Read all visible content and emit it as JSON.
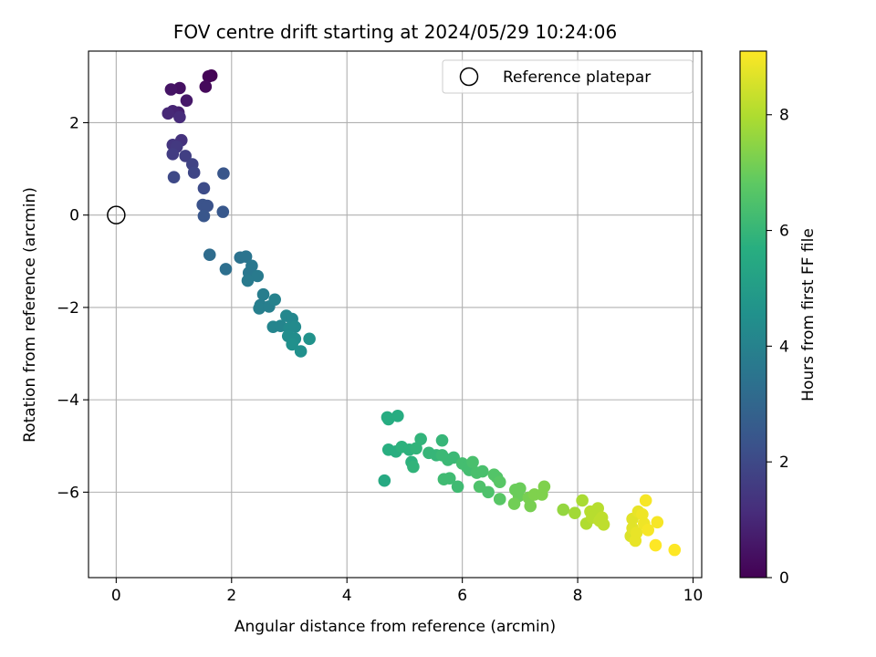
{
  "chart_data": {
    "type": "scatter",
    "title": "FOV centre drift starting at 2024/05/29 10:24:06",
    "xlabel": "Angular distance from reference (arcmin)",
    "ylabel": "Rotation from reference (arcmin)",
    "xlim": [
      -0.48,
      10.15
    ],
    "ylim": [
      -7.85,
      3.55
    ],
    "x_ticks": [
      0,
      2,
      4,
      6,
      8,
      10
    ],
    "y_ticks": [
      -6,
      -4,
      -2,
      0,
      2
    ],
    "x_tick_labels": [
      "0",
      "2",
      "4",
      "6",
      "8",
      "10"
    ],
    "y_tick_labels": [
      "−6",
      "−4",
      "−2",
      "0",
      "2"
    ],
    "grid": true,
    "legend": {
      "position": "top-right",
      "label": "Reference platepar"
    },
    "reference_point": {
      "x": 0,
      "y": 0
    },
    "colorbar": {
      "label": "Hours from first FF file",
      "colormap": "viridis",
      "range": [
        0,
        9.1
      ],
      "ticks": [
        0,
        2,
        4,
        6,
        8
      ],
      "tick_labels": [
        "0",
        "2",
        "4",
        "6",
        "8"
      ]
    },
    "points": [
      {
        "x": 1.65,
        "y": 3.02,
        "h": 0.0
      },
      {
        "x": 1.6,
        "y": 3.0,
        "h": 0.1
      },
      {
        "x": 1.55,
        "y": 2.78,
        "h": 0.2
      },
      {
        "x": 1.1,
        "y": 2.75,
        "h": 0.4
      },
      {
        "x": 0.95,
        "y": 2.72,
        "h": 0.5
      },
      {
        "x": 1.22,
        "y": 2.48,
        "h": 0.6
      },
      {
        "x": 1.08,
        "y": 2.22,
        "h": 0.8
      },
      {
        "x": 0.98,
        "y": 2.25,
        "h": 0.9
      },
      {
        "x": 0.9,
        "y": 2.2,
        "h": 1.0
      },
      {
        "x": 1.1,
        "y": 2.12,
        "h": 1.1
      },
      {
        "x": 1.13,
        "y": 1.62,
        "h": 1.3
      },
      {
        "x": 0.98,
        "y": 1.52,
        "h": 1.4
      },
      {
        "x": 1.05,
        "y": 1.48,
        "h": 1.5
      },
      {
        "x": 0.98,
        "y": 1.32,
        "h": 1.6
      },
      {
        "x": 1.2,
        "y": 1.28,
        "h": 1.7
      },
      {
        "x": 1.32,
        "y": 1.1,
        "h": 1.8
      },
      {
        "x": 1.35,
        "y": 0.92,
        "h": 1.9
      },
      {
        "x": 1.0,
        "y": 0.82,
        "h": 2.0
      },
      {
        "x": 1.52,
        "y": 0.58,
        "h": 2.1
      },
      {
        "x": 1.5,
        "y": 0.22,
        "h": 2.3
      },
      {
        "x": 1.58,
        "y": 0.2,
        "h": 2.3
      },
      {
        "x": 1.52,
        "y": -0.02,
        "h": 2.4
      },
      {
        "x": 1.86,
        "y": 0.9,
        "h": 2.4
      },
      {
        "x": 1.85,
        "y": 0.07,
        "h": 2.5
      },
      {
        "x": 1.62,
        "y": -0.86,
        "h": 3.2
      },
      {
        "x": 1.9,
        "y": -1.17,
        "h": 3.3
      },
      {
        "x": 2.15,
        "y": -0.92,
        "h": 3.4
      },
      {
        "x": 2.25,
        "y": -0.9,
        "h": 3.5
      },
      {
        "x": 2.35,
        "y": -1.1,
        "h": 3.6
      },
      {
        "x": 2.3,
        "y": -1.25,
        "h": 3.6
      },
      {
        "x": 2.45,
        "y": -1.32,
        "h": 3.7
      },
      {
        "x": 2.28,
        "y": -1.42,
        "h": 3.7
      },
      {
        "x": 2.55,
        "y": -1.72,
        "h": 3.8
      },
      {
        "x": 2.5,
        "y": -1.95,
        "h": 3.8
      },
      {
        "x": 2.48,
        "y": -2.02,
        "h": 3.9
      },
      {
        "x": 2.65,
        "y": -1.98,
        "h": 3.9
      },
      {
        "x": 2.75,
        "y": -1.83,
        "h": 4.0
      },
      {
        "x": 2.72,
        "y": -2.42,
        "h": 4.1
      },
      {
        "x": 2.85,
        "y": -2.4,
        "h": 4.1
      },
      {
        "x": 2.95,
        "y": -2.18,
        "h": 4.2
      },
      {
        "x": 3.05,
        "y": -2.25,
        "h": 4.2
      },
      {
        "x": 3.0,
        "y": -2.45,
        "h": 4.3
      },
      {
        "x": 3.1,
        "y": -2.42,
        "h": 4.3
      },
      {
        "x": 2.98,
        "y": -2.62,
        "h": 4.4
      },
      {
        "x": 3.1,
        "y": -2.68,
        "h": 4.4
      },
      {
        "x": 3.05,
        "y": -2.8,
        "h": 4.5
      },
      {
        "x": 3.2,
        "y": -2.95,
        "h": 4.5
      },
      {
        "x": 3.35,
        "y": -2.68,
        "h": 4.6
      },
      {
        "x": 4.65,
        "y": -5.75,
        "h": 5.5
      },
      {
        "x": 4.7,
        "y": -4.38,
        "h": 5.6
      },
      {
        "x": 4.72,
        "y": -4.42,
        "h": 5.6
      },
      {
        "x": 4.88,
        "y": -4.35,
        "h": 5.6
      },
      {
        "x": 4.72,
        "y": -5.08,
        "h": 5.7
      },
      {
        "x": 4.85,
        "y": -5.12,
        "h": 5.7
      },
      {
        "x": 4.95,
        "y": -5.02,
        "h": 5.8
      },
      {
        "x": 5.08,
        "y": -5.08,
        "h": 5.8
      },
      {
        "x": 5.12,
        "y": -5.35,
        "h": 5.8
      },
      {
        "x": 5.15,
        "y": -5.45,
        "h": 5.9
      },
      {
        "x": 5.2,
        "y": -5.05,
        "h": 5.9
      },
      {
        "x": 5.28,
        "y": -4.85,
        "h": 5.9
      },
      {
        "x": 5.42,
        "y": -5.15,
        "h": 6.0
      },
      {
        "x": 5.55,
        "y": -5.2,
        "h": 6.0
      },
      {
        "x": 5.65,
        "y": -4.88,
        "h": 6.0
      },
      {
        "x": 5.65,
        "y": -5.2,
        "h": 6.1
      },
      {
        "x": 5.75,
        "y": -5.3,
        "h": 6.1
      },
      {
        "x": 5.85,
        "y": -5.25,
        "h": 6.1
      },
      {
        "x": 5.68,
        "y": -5.72,
        "h": 6.2
      },
      {
        "x": 5.78,
        "y": -5.7,
        "h": 6.2
      },
      {
        "x": 5.92,
        "y": -5.88,
        "h": 6.2
      },
      {
        "x": 6.0,
        "y": -5.38,
        "h": 6.3
      },
      {
        "x": 6.08,
        "y": -5.45,
        "h": 6.3
      },
      {
        "x": 6.12,
        "y": -5.52,
        "h": 6.3
      },
      {
        "x": 6.18,
        "y": -5.35,
        "h": 6.4
      },
      {
        "x": 6.25,
        "y": -5.58,
        "h": 6.4
      },
      {
        "x": 6.35,
        "y": -5.55,
        "h": 6.4
      },
      {
        "x": 6.3,
        "y": -5.88,
        "h": 6.5
      },
      {
        "x": 6.45,
        "y": -6.0,
        "h": 6.5
      },
      {
        "x": 6.55,
        "y": -5.62,
        "h": 6.6
      },
      {
        "x": 6.6,
        "y": -5.68,
        "h": 6.6
      },
      {
        "x": 6.65,
        "y": -5.78,
        "h": 6.7
      },
      {
        "x": 6.65,
        "y": -6.15,
        "h": 6.7
      },
      {
        "x": 6.92,
        "y": -5.95,
        "h": 7.0
      },
      {
        "x": 6.98,
        "y": -6.08,
        "h": 7.0
      },
      {
        "x": 7.0,
        "y": -5.92,
        "h": 7.0
      },
      {
        "x": 6.9,
        "y": -6.25,
        "h": 7.1
      },
      {
        "x": 7.15,
        "y": -6.12,
        "h": 7.2
      },
      {
        "x": 7.18,
        "y": -6.3,
        "h": 7.2
      },
      {
        "x": 7.25,
        "y": -6.05,
        "h": 7.3
      },
      {
        "x": 7.38,
        "y": -6.05,
        "h": 7.3
      },
      {
        "x": 7.42,
        "y": -5.88,
        "h": 7.3
      },
      {
        "x": 7.75,
        "y": -6.38,
        "h": 7.6
      },
      {
        "x": 7.95,
        "y": -6.45,
        "h": 7.8
      },
      {
        "x": 8.08,
        "y": -6.18,
        "h": 7.9
      },
      {
        "x": 8.15,
        "y": -6.68,
        "h": 8.0
      },
      {
        "x": 8.22,
        "y": -6.42,
        "h": 8.1
      },
      {
        "x": 8.25,
        "y": -6.55,
        "h": 8.1
      },
      {
        "x": 8.35,
        "y": -6.35,
        "h": 8.1
      },
      {
        "x": 8.38,
        "y": -6.62,
        "h": 8.2
      },
      {
        "x": 8.42,
        "y": -6.55,
        "h": 8.2
      },
      {
        "x": 8.45,
        "y": -6.7,
        "h": 8.2
      },
      {
        "x": 8.92,
        "y": -6.95,
        "h": 8.6
      },
      {
        "x": 8.95,
        "y": -6.78,
        "h": 8.7
      },
      {
        "x": 8.95,
        "y": -6.58,
        "h": 8.7
      },
      {
        "x": 9.02,
        "y": -6.88,
        "h": 8.8
      },
      {
        "x": 9.05,
        "y": -6.42,
        "h": 8.8
      },
      {
        "x": 9.0,
        "y": -7.05,
        "h": 8.8
      },
      {
        "x": 9.12,
        "y": -6.48,
        "h": 8.9
      },
      {
        "x": 9.15,
        "y": -6.68,
        "h": 8.9
      },
      {
        "x": 9.18,
        "y": -6.18,
        "h": 9.0
      },
      {
        "x": 9.22,
        "y": -6.82,
        "h": 9.0
      },
      {
        "x": 9.38,
        "y": -6.65,
        "h": 9.0
      },
      {
        "x": 9.35,
        "y": -7.15,
        "h": 9.1
      },
      {
        "x": 9.68,
        "y": -7.25,
        "h": 9.1
      }
    ]
  }
}
